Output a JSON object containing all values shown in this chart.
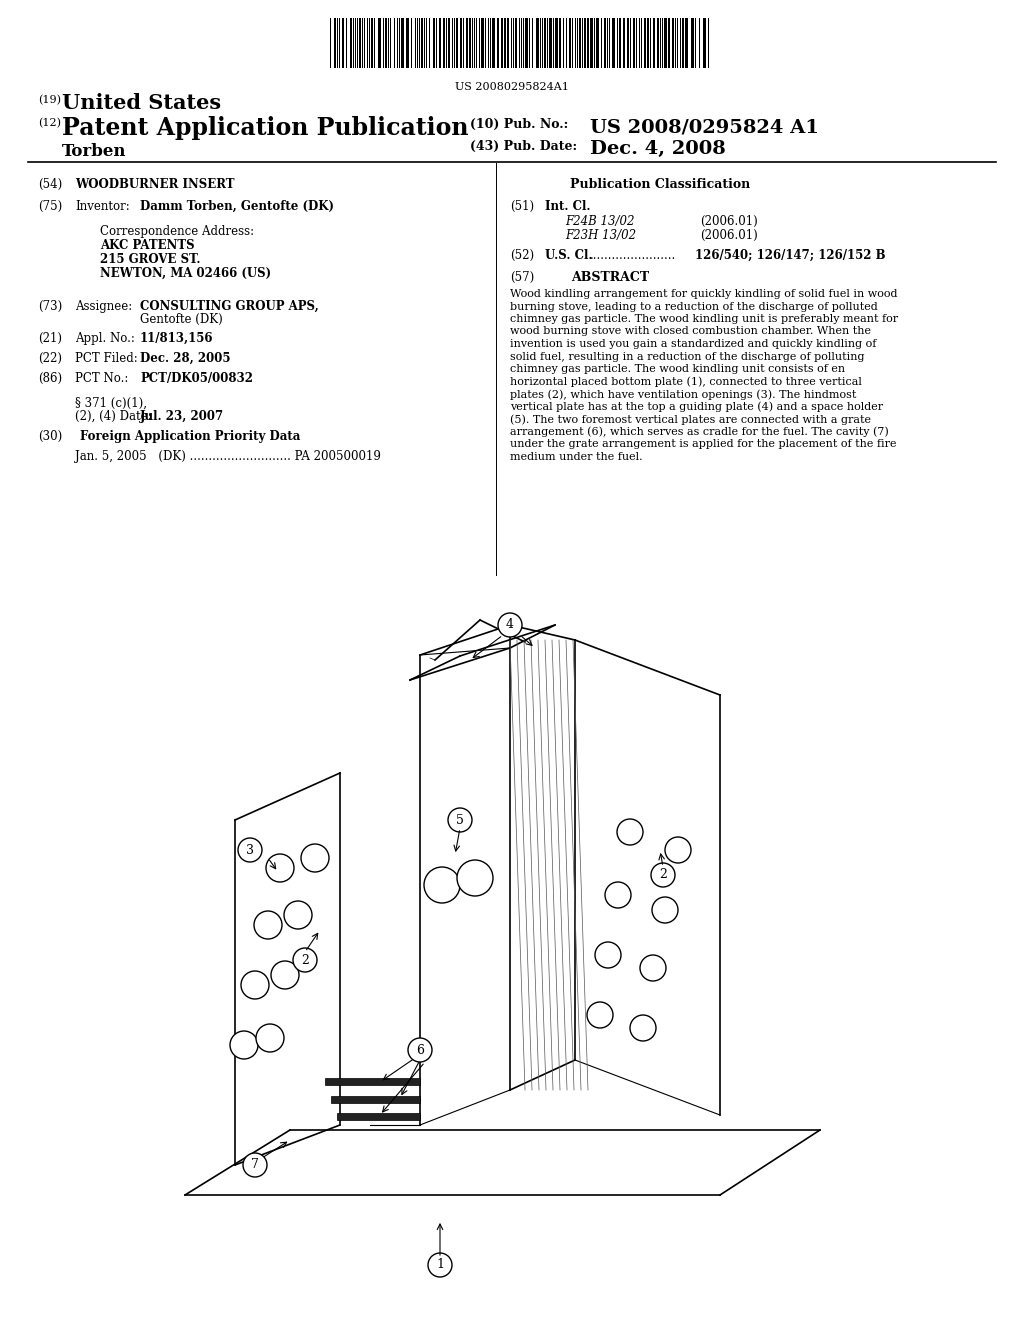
{
  "background_color": "#ffffff",
  "barcode_text": "US 20080295824A1",
  "header": {
    "country_label": "(19)",
    "country": "United States",
    "type_label": "(12)",
    "type": "Patent Application Publication",
    "pub_no_label": "(10) Pub. No.:",
    "pub_no": "US 2008/0295824 A1",
    "date_label": "(43) Pub. Date:",
    "date": "Dec. 4, 2008",
    "inventor_last": "Torben"
  },
  "left_col": [
    {
      "tag": "(54)",
      "label": "WOODBURNER INSERT"
    },
    {
      "tag": "(75)",
      "label": "Inventor:",
      "value": "Damm Torben, Gentofte (DK)"
    },
    {
      "tag": "",
      "label": "Correspondence Address:\nAKC PATENTS\n215 GROVE ST.\nNEWTON, MA 02466 (US)"
    },
    {
      "tag": "(73)",
      "label": "Assignee:",
      "value": "CONSULTING GROUP APS,\nGentofte (DK)"
    },
    {
      "tag": "(21)",
      "label": "Appl. No.:",
      "value": "11/813,156"
    },
    {
      "tag": "(22)",
      "label": "PCT Filed:",
      "value": "Dec. 28, 2005"
    },
    {
      "tag": "(86)",
      "label": "PCT No.:",
      "value": "PCT/DK05/00832"
    },
    {
      "tag": "",
      "label": "§ 371 (c)(1),\n(2), (4) Date:",
      "value": "Jul. 23, 2007"
    },
    {
      "tag": "(30)",
      "label": "Foreign Application Priority Data"
    },
    {
      "tag": "",
      "label": "Jan. 5, 2005 (DK) ........................... PA 200500019"
    }
  ],
  "right_col": {
    "pub_class_title": "Publication Classification",
    "int_cl_tag": "(51)",
    "int_cl_label": "Int. Cl.",
    "int_cl_entries": [
      {
        "code": "F24B 13/02",
        "year": "(2006.01)"
      },
      {
        "code": "F23H 13/02",
        "year": "(2006.01)"
      }
    ],
    "us_cl_tag": "(52)",
    "us_cl_label": "U.S. Cl.",
    "us_cl_dots": ".......................",
    "us_cl_value": "126/540; 126/147; 126/152 B",
    "abstract_tag": "(57)",
    "abstract_title": "ABSTRACT",
    "abstract_text": "Wood kindling arrangement for quickly kindling of solid fuel in wood burning stove, leading to a reduction of the discharge of polluted chimney gas particle. The wood kindling unit is preferably meant for wood burning stove with closed combustion chamber. When the invention is used you gain a standardized and quickly kindling of solid fuel, resulting in a reduction of the discharge of polluting chimney gas particle. The wood kindling unit consists of en horizontal placed bottom plate (1), connected to three vertical plates (2), which have ventilation openings (3). The hindmost vertical plate has at the top a guiding plate (4) and a space holder (5). The two foremost vertical plates are connected with a grate arrangement (6), which serves as cradle for the fuel. The cavity (7) under the grate arrangement is applied for the placement of the fire medium under the fuel."
  }
}
